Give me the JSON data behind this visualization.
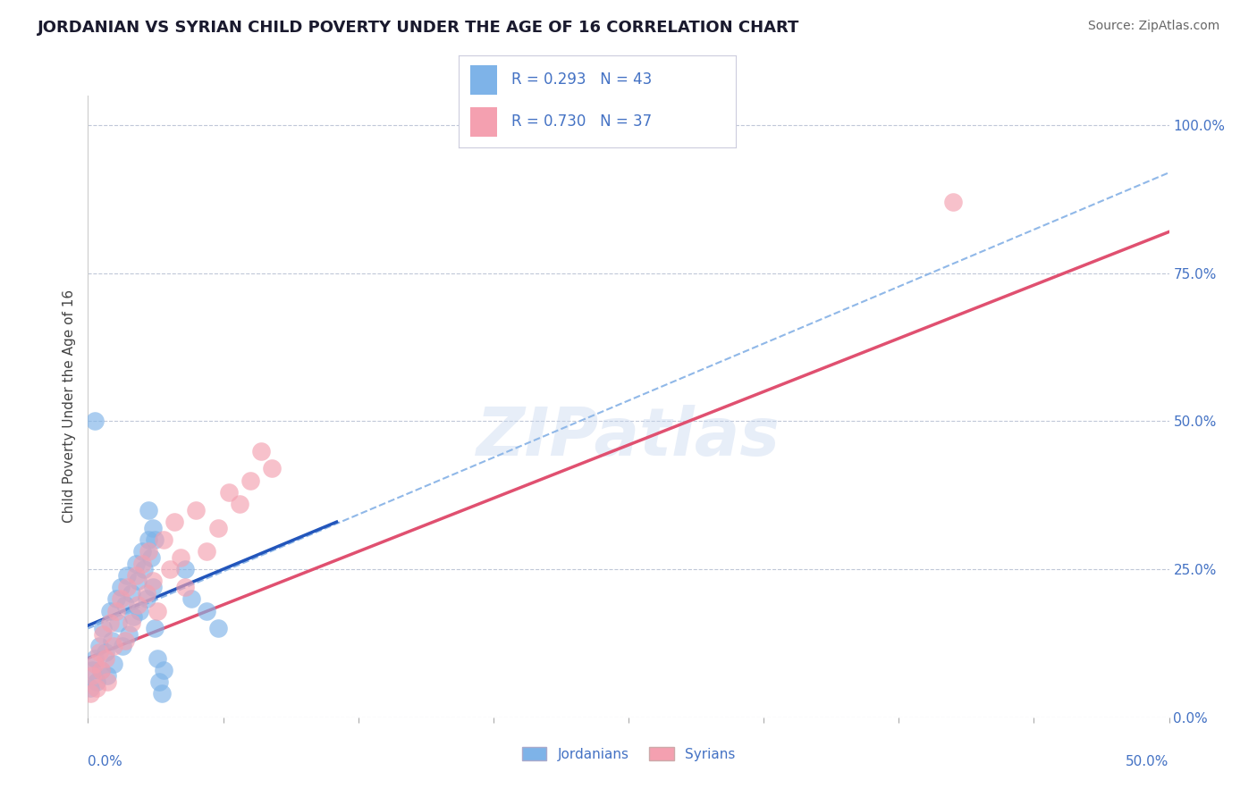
{
  "title": "JORDANIAN VS SYRIAN CHILD POVERTY UNDER THE AGE OF 16 CORRELATION CHART",
  "source": "Source: ZipAtlas.com",
  "ylabel": "Child Poverty Under the Age of 16",
  "ytick_values": [
    0.0,
    0.25,
    0.5,
    0.75,
    1.0
  ],
  "xlim": [
    0.0,
    0.5
  ],
  "ylim": [
    0.0,
    1.05
  ],
  "jordanian_color": "#7eb3e8",
  "syrian_color": "#f4a0b0",
  "jordanian_line_color": "#2255bb",
  "syrian_line_color": "#e05070",
  "dashed_line_color": "#90b8e8",
  "axis_color": "#4472c4",
  "title_color": "#1a1a2e",
  "legend1_R": "0.293",
  "legend1_N": "43",
  "legend2_R": "0.730",
  "legend2_N": "37",
  "legend_bottom_label1": "Jordanians",
  "legend_bottom_label2": "Syrians",
  "jordanian_x": [
    0.001,
    0.002,
    0.003,
    0.004,
    0.005,
    0.006,
    0.007,
    0.008,
    0.009,
    0.01,
    0.011,
    0.012,
    0.013,
    0.014,
    0.015,
    0.016,
    0.017,
    0.018,
    0.019,
    0.02,
    0.021,
    0.022,
    0.023,
    0.024,
    0.025,
    0.026,
    0.027,
    0.028,
    0.029,
    0.03,
    0.031,
    0.032,
    0.033,
    0.034,
    0.035,
    0.003,
    0.028,
    0.03,
    0.031,
    0.045,
    0.048,
    0.055,
    0.06
  ],
  "jordanian_y": [
    0.05,
    0.08,
    0.1,
    0.06,
    0.12,
    0.08,
    0.15,
    0.11,
    0.07,
    0.18,
    0.13,
    0.09,
    0.2,
    0.16,
    0.22,
    0.12,
    0.19,
    0.24,
    0.14,
    0.21,
    0.17,
    0.26,
    0.23,
    0.18,
    0.28,
    0.25,
    0.2,
    0.3,
    0.27,
    0.22,
    0.15,
    0.1,
    0.06,
    0.04,
    0.08,
    0.5,
    0.35,
    0.32,
    0.3,
    0.25,
    0.2,
    0.18,
    0.15
  ],
  "syrian_x": [
    0.001,
    0.002,
    0.003,
    0.004,
    0.005,
    0.006,
    0.007,
    0.008,
    0.009,
    0.01,
    0.012,
    0.013,
    0.015,
    0.017,
    0.018,
    0.02,
    0.022,
    0.023,
    0.025,
    0.027,
    0.028,
    0.03,
    0.032,
    0.035,
    0.038,
    0.04,
    0.043,
    0.045,
    0.05,
    0.055,
    0.06,
    0.065,
    0.07,
    0.075,
    0.08,
    0.085,
    0.4
  ],
  "syrian_y": [
    0.04,
    0.07,
    0.09,
    0.05,
    0.11,
    0.08,
    0.14,
    0.1,
    0.06,
    0.16,
    0.12,
    0.18,
    0.2,
    0.13,
    0.22,
    0.16,
    0.24,
    0.19,
    0.26,
    0.21,
    0.28,
    0.23,
    0.18,
    0.3,
    0.25,
    0.33,
    0.27,
    0.22,
    0.35,
    0.28,
    0.32,
    0.38,
    0.36,
    0.4,
    0.45,
    0.42,
    0.87
  ],
  "dashed_line_x": [
    0.0,
    0.5
  ],
  "dashed_line_y": [
    0.15,
    0.92
  ],
  "syrian_line_x": [
    0.0,
    0.5
  ],
  "syrian_line_y": [
    0.1,
    0.82
  ],
  "jordanian_line_x": [
    0.0,
    0.115
  ],
  "jordanian_line_y": [
    0.155,
    0.33
  ]
}
